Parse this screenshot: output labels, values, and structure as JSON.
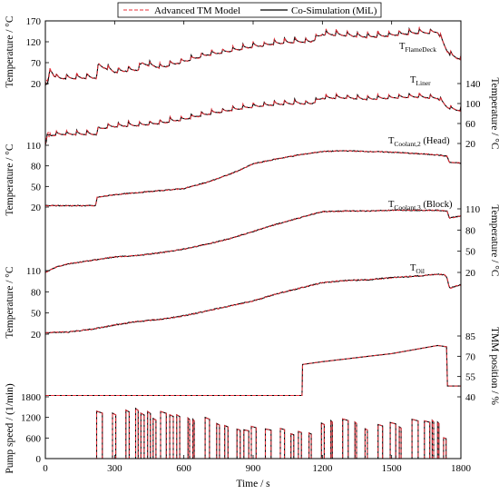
{
  "legend": [
    {
      "name": "Advanced TM Model",
      "color": "#e8303a",
      "dash": true
    },
    {
      "name": "Co-Simulation (MiL)",
      "color": "#000000",
      "dash": false
    }
  ],
  "xaxis": {
    "label": "Time / s",
    "ticks": [
      "0",
      "300",
      "600",
      "900",
      "1200",
      "1500",
      "1800"
    ]
  },
  "axes": {
    "flamedeck": {
      "side": "left",
      "label": "Temperature / °C",
      "ticks": [
        "20",
        "70",
        "120",
        "170"
      ]
    },
    "liner": {
      "side": "right",
      "label": "Temperature / °C",
      "ticks": [
        "20",
        "60",
        "100",
        "140"
      ]
    },
    "coolant_head": {
      "side": "left",
      "label": "Temperature / °C",
      "ticks": [
        "20",
        "50",
        "80",
        "110"
      ]
    },
    "coolant_block": {
      "side": "right",
      "label": "Temperature / °C",
      "ticks": [
        "20",
        "50",
        "80",
        "110"
      ]
    },
    "oil": {
      "side": "left",
      "label": "Temperature / °C",
      "ticks": [
        "20",
        "50",
        "80",
        "110"
      ]
    },
    "tmm": {
      "side": "right",
      "label": "TMM position / %",
      "ticks": [
        "40",
        "55",
        "70",
        "85"
      ]
    },
    "pump": {
      "side": "left",
      "label": "Pump speed / (1/min)",
      "ticks": [
        "0",
        "600",
        "1200",
        "1800"
      ]
    }
  },
  "annotations": {
    "flamedeck": {
      "main": "T",
      "sub": "FlameDeck",
      "tail": ""
    },
    "liner": {
      "main": "T",
      "sub": "Liner",
      "tail": ""
    },
    "coolant_head": {
      "main": "T",
      "sub": "Coolant,2",
      "tail": " (Head)"
    },
    "coolant_block": {
      "main": "T",
      "sub": "Coolant,3",
      "tail": " (Block)"
    },
    "oil": {
      "main": "T",
      "sub": "Oil",
      "tail": ""
    }
  },
  "chart_data": {
    "type": "line",
    "xlabel": "Time / s",
    "xlim": [
      0,
      1800
    ],
    "series": [
      {
        "name": "TFlameDeck",
        "axis": "flamedeck",
        "ylim": [
          20,
          170
        ],
        "x": [
          0,
          10,
          20,
          40,
          60,
          100,
          200,
          220,
          230,
          280,
          300,
          400,
          420,
          500,
          600,
          700,
          800,
          900,
          1000,
          1100,
          1150,
          1200,
          1300,
          1400,
          1500,
          1600,
          1700,
          1740,
          1760,
          1800
        ],
        "y": [
          20,
          25,
          55,
          40,
          35,
          35,
          36,
          36,
          65,
          55,
          50,
          55,
          70,
          60,
          75,
          90,
          100,
          110,
          118,
          122,
          122,
          140,
          138,
          133,
          138,
          143,
          145,
          100,
          88,
          80
        ]
      },
      {
        "name": "TLiner",
        "axis": "liner",
        "ylim": [
          20,
          140
        ],
        "x": [
          0,
          10,
          30,
          60,
          100,
          200,
          220,
          230,
          280,
          400,
          500,
          600,
          700,
          800,
          900,
          1000,
          1100,
          1150,
          1200,
          1300,
          1400,
          1500,
          1600,
          1700,
          1740,
          1760,
          1800
        ],
        "y": [
          20,
          38,
          38,
          40,
          40,
          40,
          40,
          50,
          55,
          58,
          62,
          70,
          80,
          88,
          95,
          100,
          102,
          101,
          112,
          113,
          110,
          113,
          115,
          112,
          95,
          90,
          88
        ]
      },
      {
        "name": "TCoolant,2 (Head)",
        "axis": "coolant_head",
        "ylim": [
          20,
          110
        ],
        "x": [
          0,
          100,
          219,
          222,
          300,
          400,
          500,
          600,
          700,
          800,
          850,
          900,
          1000,
          1100,
          1200,
          1300,
          1400,
          1500,
          1600,
          1700,
          1740,
          1750,
          1800
        ],
        "y": [
          22,
          22,
          22,
          34,
          38,
          41,
          44,
          47,
          56,
          68,
          75,
          83,
          90,
          96,
          101,
          102,
          101,
          100,
          98,
          96,
          94,
          85,
          84
        ]
      },
      {
        "name": "TCoolant,3 (Block)",
        "axis": "coolant_block",
        "ylim": [
          20,
          110
        ],
        "x": [
          0,
          50,
          100,
          200,
          300,
          400,
          500,
          600,
          700,
          800,
          900,
          1000,
          1100,
          1150,
          1200,
          1300,
          1400,
          1500,
          1600,
          1700,
          1740,
          1750,
          1800
        ],
        "y": [
          20,
          28,
          32,
          37,
          42,
          44,
          48,
          53,
          60,
          68,
          78,
          88,
          97,
          102,
          106,
          107,
          107,
          108,
          108,
          108,
          107,
          97,
          100
        ]
      },
      {
        "name": "TOil",
        "axis": "oil",
        "ylim": [
          20,
          110
        ],
        "x": [
          0,
          100,
          200,
          300,
          400,
          500,
          600,
          700,
          800,
          900,
          1000,
          1100,
          1200,
          1300,
          1400,
          1500,
          1600,
          1700,
          1730,
          1740,
          1750,
          1800
        ],
        "y": [
          22,
          23,
          27,
          33,
          38,
          41,
          46,
          53,
          60,
          67,
          77,
          85,
          93,
          96,
          97,
          100,
          102,
          105,
          104,
          100,
          85,
          90
        ]
      },
      {
        "name": "TMM position",
        "axis": "tmm",
        "ylim": [
          40,
          85
        ],
        "x": [
          0,
          1100,
          1112,
          1114,
          1200,
          1300,
          1400,
          1500,
          1600,
          1700,
          1738,
          1742,
          1800
        ],
        "y": [
          41,
          41,
          41,
          64,
          66,
          68,
          70,
          72,
          75,
          78,
          77,
          48,
          48
        ]
      },
      {
        "name": "Pump speed",
        "axis": "pump",
        "ylim": [
          0,
          1800
        ],
        "x": [
          0,
          215,
          219,
          222,
          300,
          400,
          500,
          600,
          700,
          800,
          900,
          1000,
          1100,
          1150,
          1200,
          1250,
          1300,
          1350,
          1400,
          1500,
          1600,
          1700,
          1760,
          1800
        ],
        "y": [
          0,
          0,
          0,
          1600,
          1500,
          1400,
          1350,
          1300,
          1150,
          1000,
          900,
          850,
          800,
          700,
          1150,
          1200,
          1250,
          1000,
          1000,
          1050,
          1150,
          1200,
          0,
          0
        ]
      }
    ]
  }
}
